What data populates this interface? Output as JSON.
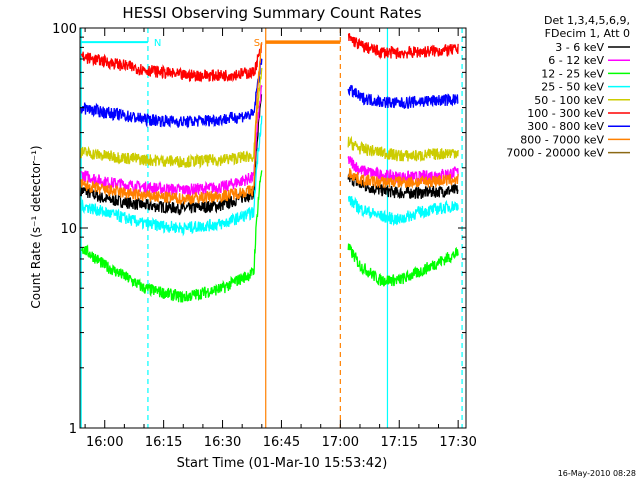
{
  "chart_data": {
    "type": "line",
    "title": "HESSI Observing Summary Count Rates",
    "xlabel": "Start Time (01-Mar-10 15:53:42)",
    "ylabel": "Count Rate (s⁻¹ detector⁻¹)",
    "x_scale": "time",
    "y_scale": "log",
    "xlim": [
      "15:53:42",
      "17:32:00"
    ],
    "ylim": [
      1,
      100
    ],
    "x_ticks": [
      "16:00",
      "16:15",
      "16:30",
      "16:45",
      "17:00",
      "17:15",
      "17:30"
    ],
    "y_ticks": [
      "1",
      "10",
      "100"
    ],
    "legend_header": [
      "Det 1,3,4,5,6,9,",
      "FDecim 1, Att 0"
    ],
    "legend_position": "top-right-outside",
    "series": [
      {
        "name": "3 - 6 keV",
        "color": "#000000",
        "x": [
          "15:54",
          "16:00",
          "16:10",
          "16:20",
          "16:30",
          "16:38",
          "16:40",
          "17:02",
          "17:05",
          "17:10",
          "17:15",
          "17:20",
          "17:30"
        ],
        "y": [
          15.5,
          14.0,
          13.0,
          12.5,
          13.0,
          15.0,
          45,
          18,
          16.5,
          15.5,
          15.0,
          15.0,
          15.5
        ]
      },
      {
        "name": "6 - 12 keV",
        "color": "#ff00ff",
        "x": [
          "15:54",
          "16:00",
          "16:10",
          "16:20",
          "16:30",
          "16:38",
          "16:40",
          "17:02",
          "17:05",
          "17:10",
          "17:15",
          "17:20",
          "17:30"
        ],
        "y": [
          18.5,
          17.0,
          16.0,
          15.5,
          16.0,
          18.0,
          50,
          22,
          19.5,
          18.5,
          18.0,
          18.0,
          19.0
        ]
      },
      {
        "name": "12 - 25 keV",
        "color": "#00ff00",
        "x": [
          "15:54",
          "16:00",
          "16:10",
          "16:20",
          "16:30",
          "16:38",
          "16:40",
          "17:02",
          "17:05",
          "17:10",
          "17:15",
          "17:20",
          "17:30"
        ],
        "y": [
          8.0,
          6.5,
          5.0,
          4.5,
          5.0,
          6.0,
          20,
          8.0,
          6.5,
          5.5,
          5.5,
          6.0,
          7.5
        ]
      },
      {
        "name": "25 - 50 keV",
        "color": "#00ffff",
        "x": [
          "15:54",
          "16:00",
          "16:10",
          "16:20",
          "16:30",
          "16:38",
          "16:40",
          "17:02",
          "17:05",
          "17:10",
          "17:15",
          "17:20",
          "17:30"
        ],
        "y": [
          13.0,
          12.0,
          10.5,
          10.0,
          10.5,
          12.0,
          35,
          14.0,
          12.5,
          11.5,
          11.0,
          12.0,
          13.0
        ]
      },
      {
        "name": "50 - 100 keV",
        "color": "#cccc00",
        "x": [
          "15:54",
          "16:00",
          "16:10",
          "16:20",
          "16:30",
          "16:38",
          "16:40",
          "17:02",
          "17:05",
          "17:10",
          "17:15",
          "17:20",
          "17:30"
        ],
        "y": [
          24.0,
          23.0,
          22.0,
          21.5,
          22.0,
          23.0,
          60,
          27,
          25.0,
          24.0,
          23.0,
          23.0,
          24.0
        ]
      },
      {
        "name": "100 - 300 keV",
        "color": "#ff0000",
        "x": [
          "15:54",
          "16:00",
          "16:10",
          "16:20",
          "16:30",
          "16:38",
          "16:40",
          "17:02",
          "17:05",
          "17:10",
          "17:15",
          "17:20",
          "17:30"
        ],
        "y": [
          72,
          68,
          62,
          58,
          58,
          60,
          80,
          90,
          82,
          76,
          75,
          76,
          78
        ]
      },
      {
        "name": "300 - 800 keV",
        "color": "#0000ff",
        "x": [
          "15:54",
          "16:00",
          "16:10",
          "16:20",
          "16:30",
          "16:38",
          "16:40",
          "17:02",
          "17:05",
          "17:10",
          "17:15",
          "17:20",
          "17:30"
        ],
        "y": [
          40,
          38,
          35,
          34,
          35,
          37,
          70,
          50,
          45,
          43,
          42,
          43,
          44
        ]
      },
      {
        "name": "800 - 7000 keV",
        "color": "#ff8000",
        "x": [
          "15:54",
          "16:00",
          "16:10",
          "16:20",
          "16:30",
          "16:38",
          "16:40",
          "17:02",
          "17:05",
          "17:10",
          "17:15",
          "17:20",
          "17:30"
        ],
        "y": [
          16.5,
          15.5,
          14.5,
          14.0,
          14.5,
          15.5,
          85,
          19,
          17.5,
          17.0,
          17.0,
          17.0,
          17.5
        ]
      },
      {
        "name": "7000 - 20000 keV",
        "color": "#8b6914",
        "x": [],
        "y": []
      }
    ],
    "saa_marker": {
      "label": "S",
      "x_start": "16:41",
      "x_end": "17:00",
      "level": 85,
      "color": "#ff8000"
    },
    "night_marker": {
      "label": "N",
      "x_start": "15:54",
      "x_end": "16:11",
      "level": 85,
      "color": "#00ffff"
    },
    "vertical_lines": [
      {
        "x": "15:54",
        "color": "#00ffff",
        "style": "solid"
      },
      {
        "x": "16:11",
        "color": "#00ffff",
        "style": "dashed"
      },
      {
        "x": "16:41",
        "color": "#ff8000",
        "style": "solid"
      },
      {
        "x": "17:00",
        "color": "#ff8000",
        "style": "dashed"
      },
      {
        "x": "17:12",
        "color": "#00ffff",
        "style": "solid"
      },
      {
        "x": "17:31",
        "color": "#00ffff",
        "style": "dashed"
      }
    ],
    "grid": false
  },
  "footer": {
    "timestamp": "16-May-2010 08:28"
  }
}
